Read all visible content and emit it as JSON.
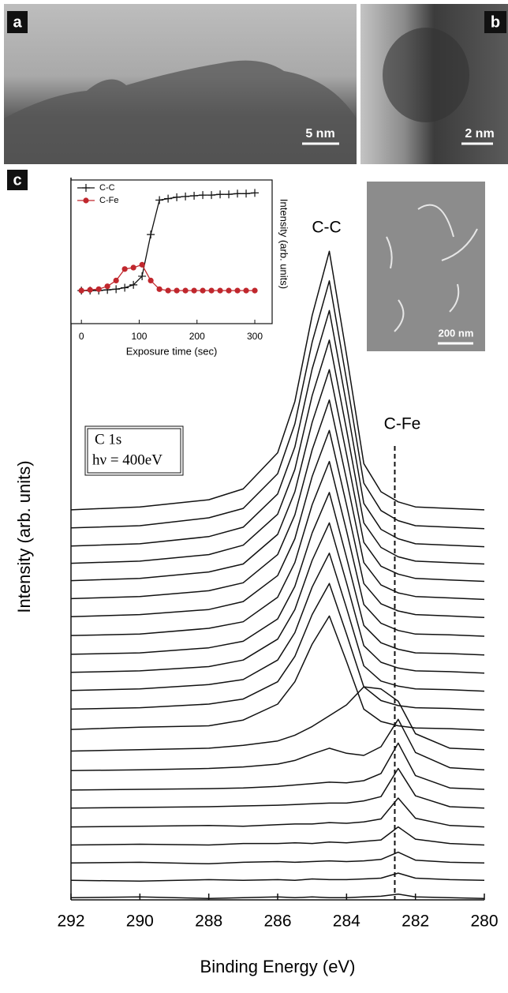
{
  "panels": {
    "labels": [
      "a",
      "b",
      "c"
    ],
    "scale_bars": [
      "5 nm",
      "2 nm",
      "200 nm"
    ]
  },
  "chart_data": [
    {
      "type": "waterfall",
      "xlabel": "Binding Energy (eV)",
      "ylabel": "Intensity (arb. units)",
      "xlim": [
        292,
        280
      ],
      "xticks": [
        292,
        290,
        288,
        286,
        284,
        282,
        280
      ],
      "ylim": [
        0,
        100
      ],
      "annotations": [
        "C-C",
        "C-Fe"
      ],
      "box_text": [
        "C 1s",
        "hν = 400eV"
      ],
      "vline": 282.6,
      "x": [
        292,
        290,
        288,
        287,
        286,
        285.5,
        285,
        284.5,
        284,
        283.5,
        283,
        282.5,
        282,
        281,
        280
      ],
      "series": [
        {
          "color": "#111",
          "values": [
            0.3,
            0.4,
            0.2,
            0.3,
            0.4,
            0.3,
            0.4,
            0.3,
            0.3,
            0.4,
            0.5,
            0.8,
            0.4,
            0.3,
            0.2
          ]
        },
        {
          "color": "#111",
          "values": [
            2.7,
            2.6,
            2.8,
            2.7,
            2.8,
            2.7,
            2.9,
            2.8,
            2.8,
            2.9,
            3.0,
            3.7,
            3.0,
            2.8,
            2.7
          ]
        },
        {
          "color": "#111",
          "values": [
            5.1,
            5.2,
            5.0,
            5.2,
            5.3,
            5.2,
            5.3,
            5.4,
            5.3,
            5.4,
            5.6,
            6.6,
            5.5,
            5.2,
            5.1
          ]
        },
        {
          "color": "#111",
          "values": [
            7.6,
            7.7,
            7.6,
            7.8,
            7.8,
            7.9,
            7.8,
            8.0,
            7.9,
            8.1,
            8.3,
            10.1,
            8.4,
            7.8,
            7.6
          ]
        },
        {
          "color": "#111",
          "values": [
            10.1,
            10.2,
            10.3,
            10.2,
            10.4,
            10.5,
            10.5,
            10.7,
            10.6,
            10.8,
            11.2,
            14.1,
            11.3,
            10.3,
            10.1
          ]
        },
        {
          "color": "#111",
          "values": [
            12.7,
            12.8,
            12.9,
            13.0,
            13.1,
            13.2,
            13.3,
            13.4,
            13.4,
            13.7,
            14.3,
            18.2,
            14.4,
            12.9,
            12.7
          ]
        },
        {
          "color": "#111",
          "values": [
            15.2,
            15.3,
            15.4,
            15.5,
            15.7,
            15.9,
            16.1,
            16.3,
            16.2,
            16.5,
            17.5,
            21.7,
            17.2,
            15.5,
            15.3
          ]
        },
        {
          "color": "#111",
          "values": [
            17.9,
            18,
            18.2,
            18.4,
            18.8,
            19.3,
            20.2,
            21,
            20.3,
            20,
            21.2,
            25,
            20.4,
            18.3,
            18
          ]
        },
        {
          "color": "#111",
          "values": [
            20.6,
            20.8,
            21,
            21.4,
            22,
            22.8,
            24,
            25.5,
            27,
            29.5,
            29.2,
            27.5,
            23,
            21,
            20.8
          ]
        },
        {
          "color": "#111",
          "values": [
            23.6,
            23.9,
            24.1,
            24.9,
            27.1,
            30.2,
            35.4,
            39.3,
            33.0,
            26.4,
            24.7,
            24.1,
            23.8,
            23.7,
            23.5
          ]
        },
        {
          "color": "#111",
          "values": [
            26.4,
            26.6,
            27.1,
            27.8,
            30.2,
            33.7,
            39.5,
            43.8,
            36.8,
            29.5,
            27.6,
            26.9,
            26.6,
            26.5,
            26.3
          ]
        },
        {
          "color": "#111",
          "values": [
            29,
            29.2,
            29.8,
            30.5,
            33.2,
            37,
            43.3,
            48,
            40.4,
            32.4,
            30.3,
            29.6,
            29.2,
            29.1,
            28.9
          ]
        },
        {
          "color": "#111",
          "values": [
            31.5,
            31.7,
            32.3,
            33.2,
            36.1,
            40.2,
            47,
            52.2,
            43.9,
            35.2,
            32.9,
            32.1,
            31.7,
            31.6,
            31.4
          ]
        },
        {
          "color": "#111",
          "values": [
            34,
            34.2,
            34.9,
            35.8,
            38.9,
            43.4,
            50.8,
            56.4,
            47.4,
            38,
            35.6,
            34.7,
            34.2,
            34.1,
            33.9
          ]
        },
        {
          "color": "#111",
          "values": [
            36.6,
            36.8,
            37.6,
            38.5,
            41.9,
            46.7,
            54.7,
            60.7,
            51.1,
            40.9,
            38.3,
            37.3,
            36.8,
            36.7,
            36.5
          ]
        },
        {
          "color": "#111",
          "values": [
            39.2,
            39.5,
            40.2,
            41.3,
            44.9,
            50,
            58.6,
            65,
            54.7,
            43.8,
            41,
            40,
            39.5,
            39.3,
            39.1
          ]
        },
        {
          "color": "#111",
          "values": [
            41.7,
            42,
            42.8,
            43.9,
            47.8,
            53.3,
            62.3,
            69.2,
            58.2,
            46.7,
            43.6,
            42.5,
            42,
            41.8,
            41.6
          ]
        },
        {
          "color": "#111",
          "values": [
            44.2,
            44.5,
            45.4,
            46.5,
            50.6,
            56.5,
            66.1,
            73.4,
            61.7,
            49.5,
            46.2,
            45.1,
            44.5,
            44.3,
            44.1
          ]
        },
        {
          "color": "#111",
          "values": [
            46.6,
            46.9,
            47.8,
            49.1,
            53.4,
            59.6,
            69.8,
            77.5,
            65.1,
            52.2,
            48.8,
            47.5,
            46.9,
            46.7,
            46.5
          ]
        },
        {
          "color": "#111",
          "values": [
            49,
            49.3,
            50.3,
            51.6,
            56.2,
            62.7,
            73.5,
            81.6,
            68.6,
            54.9,
            51.3,
            50,
            49.3,
            49.1,
            48.9
          ]
        },
        {
          "color": "#111",
          "values": [
            51.5,
            51.8,
            52.9,
            54.2,
            59,
            65.9,
            77.2,
            85.7,
            72,
            57.7,
            53.9,
            52.5,
            51.8,
            51.6,
            51.4
          ]
        },
        {
          "color": "#111",
          "values": [
            54,
            54.4,
            55.4,
            56.9,
            61.9,
            69,
            80.9,
            89.8,
            75.5,
            60.4,
            56.5,
            55.1,
            54.4,
            54.2,
            54
          ]
        }
      ]
    },
    {
      "type": "line",
      "xlabel": "Exposure time (sec)",
      "ylabel": "Intensity (arb. units)",
      "xlim": [
        -18,
        330
      ],
      "xticks": [
        0,
        100,
        200,
        300
      ],
      "ylim": [
        0,
        100
      ],
      "legend": "upper left",
      "x": [
        0,
        15,
        30,
        45,
        60,
        75,
        90,
        105,
        120,
        135,
        150,
        165,
        180,
        195,
        210,
        225,
        240,
        255,
        270,
        285,
        300
      ],
      "series": [
        {
          "name": "C-C",
          "color": "#111111",
          "marker": "plus",
          "values": [
            23,
            23,
            23,
            23.5,
            24,
            25,
            27,
            33,
            62,
            86,
            87,
            88,
            88.5,
            89,
            89.5,
            89.5,
            90,
            90,
            90.5,
            90.5,
            91
          ]
        },
        {
          "name": "C-Fe",
          "color": "#c0272d",
          "marker": "circle",
          "values": [
            23,
            23.5,
            24,
            26,
            30,
            38,
            39,
            41,
            30,
            24,
            23,
            23,
            23,
            23,
            23,
            23,
            23,
            23,
            23,
            23,
            23
          ]
        }
      ]
    }
  ]
}
